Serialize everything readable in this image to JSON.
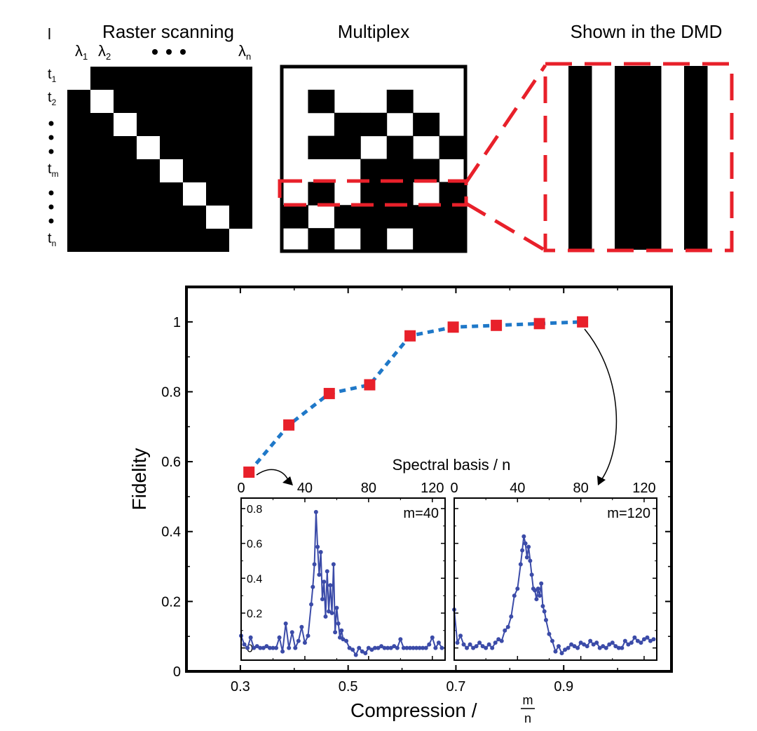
{
  "panels": {
    "raster": {
      "title": "Raster scanning",
      "corner_mark": "l",
      "col_labels": [
        {
          "base": "λ",
          "sub": "1"
        },
        {
          "base": "λ",
          "sub": "2"
        },
        {
          "base": "λ",
          "sub": "n"
        }
      ],
      "row_labels": [
        {
          "base": "t",
          "sub": "1"
        },
        {
          "base": "t",
          "sub": "2"
        },
        {
          "base": "t",
          "sub": "m"
        },
        {
          "base": "t",
          "sub": "n"
        }
      ],
      "matrix_size": 8
    },
    "multiplex": {
      "title": "Multiplex",
      "grid_rows": 8,
      "grid_cols": 7,
      "pattern": [
        [
          0,
          0,
          0,
          0,
          0,
          0,
          0
        ],
        [
          0,
          1,
          0,
          0,
          1,
          0,
          0
        ],
        [
          0,
          0,
          1,
          1,
          0,
          1,
          0
        ],
        [
          0,
          1,
          1,
          0,
          1,
          0,
          1
        ],
        [
          0,
          0,
          0,
          1,
          1,
          1,
          0
        ],
        [
          0,
          1,
          0,
          1,
          1,
          0,
          1
        ],
        [
          1,
          0,
          1,
          1,
          1,
          1,
          1
        ],
        [
          0,
          1,
          0,
          1,
          0,
          1,
          1
        ]
      ],
      "highlight_row": 5
    },
    "dmd": {
      "title": "Shown in the DMD",
      "stripes": [
        1,
        0,
        1,
        1,
        0,
        1
      ]
    }
  },
  "chart_data": [
    {
      "type": "line",
      "title": "",
      "xlabel": "Compression / ",
      "xlabel_frac": {
        "num": "m",
        "den": "n"
      },
      "ylabel": "Fidelity",
      "xlim": [
        0.2,
        1.1
      ],
      "ylim": [
        0,
        1.1
      ],
      "xticks": [
        "0.3",
        "0.5",
        "0.7",
        "0.9"
      ],
      "xtick_values": [
        0.3,
        0.5,
        0.7,
        0.9
      ],
      "yticks": [
        "0",
        "0.2",
        "0.4",
        "0.6",
        "0.8",
        "1"
      ],
      "ytick_values": [
        0,
        0.2,
        0.4,
        0.6,
        0.8,
        1.0
      ],
      "series": [
        {
          "name": "Fidelity",
          "marker": "square",
          "marker_color": "#e8202a",
          "line_color": "#1f78c8",
          "x": [
            0.316,
            0.39,
            0.465,
            0.54,
            0.615,
            0.695,
            0.775,
            0.855,
            0.935
          ],
          "y": [
            0.57,
            0.705,
            0.795,
            0.82,
            0.96,
            0.985,
            0.99,
            0.995,
            1.0
          ]
        }
      ]
    },
    {
      "type": "line",
      "title": "",
      "annotation": "m=40",
      "xlabel": "Spectral basis / n",
      "xlim": [
        0,
        128
      ],
      "ylim": [
        -0.07,
        0.86
      ],
      "xticks": [
        "0",
        "40",
        "80",
        "120"
      ],
      "xtick_values": [
        0,
        40,
        80,
        120
      ],
      "yticks": [
        "0",
        "0.2",
        "0.4",
        "0.6",
        "0.8"
      ],
      "ytick_values": [
        0,
        0.2,
        0.4,
        0.6,
        0.8
      ],
      "series": [
        {
          "name": "spectrum m=40",
          "color": "#3b4ba8",
          "x": [
            0,
            2,
            4,
            6,
            8,
            10,
            12,
            14,
            16,
            18,
            20,
            22,
            24,
            26,
            28,
            30,
            32,
            34,
            36,
            38,
            40,
            42,
            44,
            45,
            46,
            47,
            48,
            49,
            50,
            51,
            52,
            53,
            54,
            55,
            56,
            57,
            58,
            59,
            60,
            61,
            62,
            63,
            64,
            66,
            68,
            70,
            72,
            74,
            76,
            78,
            80,
            82,
            84,
            86,
            88,
            90,
            92,
            94,
            96,
            98,
            100,
            102,
            104,
            106,
            108,
            110,
            112,
            114,
            116,
            118,
            120,
            122,
            124,
            126
          ],
          "y": [
            0.07,
            0.02,
            0.0,
            0.06,
            0.0,
            0.01,
            0.0,
            0.0,
            0.01,
            0.0,
            0.0,
            0.0,
            0.06,
            -0.02,
            0.14,
            0.0,
            0.09,
            0.0,
            0.04,
            0.12,
            0.03,
            0.07,
            0.25,
            0.35,
            0.48,
            0.78,
            0.58,
            0.42,
            0.55,
            0.28,
            0.38,
            0.18,
            0.44,
            0.21,
            0.36,
            0.2,
            0.48,
            0.09,
            0.23,
            0.14,
            0.06,
            0.1,
            0.05,
            0.04,
            0.0,
            -0.01,
            -0.04,
            0.0,
            -0.02,
            -0.03,
            0.0,
            -0.01,
            0.0,
            0.0,
            0.01,
            0.0,
            0.0,
            0.0,
            0.01,
            0.0,
            0.05,
            0.0,
            0.0,
            0.0,
            0.0,
            0.0,
            0.0,
            0.0,
            0.0,
            0.02,
            0.06,
            0.0,
            0.03,
            0.0
          ]
        }
      ]
    },
    {
      "type": "line",
      "title": "",
      "annotation": "m=120",
      "xlabel": "Spectral basis / n",
      "xlim": [
        0,
        128
      ],
      "ylim": [
        -0.07,
        0.86
      ],
      "xticks": [
        "0",
        "40",
        "80",
        "120"
      ],
      "xtick_values": [
        0,
        40,
        80,
        120
      ],
      "yticks": [],
      "ytick_values": [],
      "series": [
        {
          "name": "spectrum m=120",
          "color": "#3b4ba8",
          "x": [
            0,
            2,
            4,
            6,
            8,
            10,
            12,
            14,
            16,
            18,
            20,
            22,
            24,
            26,
            28,
            30,
            32,
            34,
            36,
            38,
            40,
            42,
            43,
            44,
            45,
            46,
            47,
            48,
            49,
            50,
            51,
            52,
            53,
            54,
            55,
            56,
            57,
            58,
            60,
            62,
            64,
            66,
            68,
            70,
            72,
            74,
            76,
            78,
            80,
            82,
            84,
            86,
            88,
            90,
            92,
            94,
            96,
            98,
            100,
            102,
            104,
            106,
            108,
            110,
            112,
            114,
            116,
            118,
            120,
            122,
            124,
            126
          ],
          "y": [
            0.22,
            0.03,
            0.07,
            0.02,
            0.0,
            0.02,
            0.0,
            0.01,
            0.03,
            0.01,
            0.0,
            0.02,
            0.0,
            0.03,
            0.05,
            0.04,
            0.1,
            0.12,
            0.18,
            0.3,
            0.34,
            0.48,
            0.56,
            0.64,
            0.6,
            0.52,
            0.58,
            0.5,
            0.42,
            0.34,
            0.33,
            0.28,
            0.34,
            0.3,
            0.37,
            0.24,
            0.21,
            0.16,
            0.08,
            0.04,
            -0.02,
            0.01,
            -0.03,
            -0.01,
            0.0,
            0.02,
            0.01,
            0.0,
            0.03,
            0.02,
            0.01,
            0.04,
            0.02,
            0.03,
            0.0,
            0.01,
            0.0,
            0.02,
            0.03,
            0.01,
            0.0,
            0.0,
            0.04,
            0.02,
            0.03,
            0.06,
            0.04,
            0.03,
            0.05,
            0.06,
            0.04,
            0.05
          ]
        }
      ]
    }
  ]
}
